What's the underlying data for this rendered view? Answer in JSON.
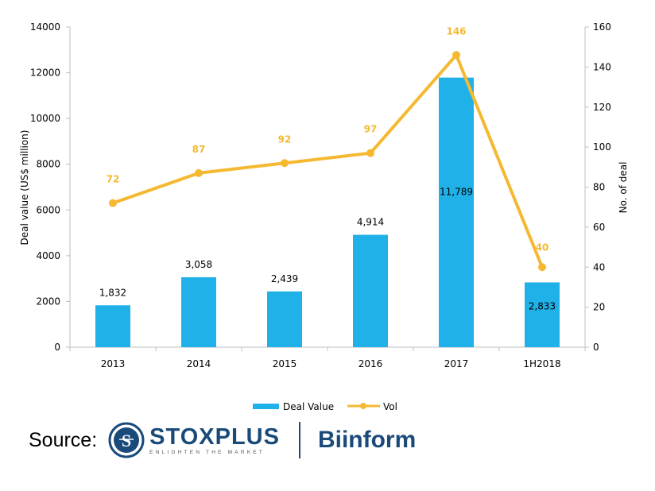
{
  "colors": {
    "bar": "#1FB1E8",
    "line": "#F5B931",
    "vol_label": "#F5B931",
    "axis": "#BFBFBF",
    "logo_blue": "#1A4A7A"
  },
  "chart_data": {
    "type": "bar",
    "categories": [
      "2013",
      "2014",
      "2015",
      "2016",
      "2017",
      "1H2018"
    ],
    "series": [
      {
        "name": "Deal Value",
        "type": "bar",
        "axis": "left",
        "values": [
          1832,
          3058,
          2439,
          4914,
          11789,
          2833
        ],
        "labels": [
          "1,832",
          "3,058",
          "2,439",
          "4,914",
          "11,789",
          "2,833"
        ]
      },
      {
        "name": "Vol",
        "type": "line",
        "axis": "right",
        "values": [
          72,
          87,
          92,
          97,
          146,
          40
        ],
        "labels": [
          "72",
          "87",
          "92",
          "97",
          "146",
          "40"
        ]
      }
    ],
    "ylabel": "Deal value (US$ million)",
    "y2label": "No. of deal",
    "ylim": [
      0,
      14000
    ],
    "y2lim": [
      0,
      160
    ],
    "yticks": [
      "0",
      "2000",
      "4000",
      "6000",
      "8000",
      "10000",
      "12000",
      "14000"
    ],
    "y2ticks": [
      "0",
      "20",
      "40",
      "60",
      "80",
      "100",
      "120",
      "140",
      "160"
    ],
    "grid": false,
    "legend": "bottom-center"
  },
  "source": {
    "label": "Source:",
    "logo1_name": "STOXPLUS",
    "logo1_tagline": "ENLIGHTEN THE MARKET",
    "logo2_name": "Biinform"
  }
}
